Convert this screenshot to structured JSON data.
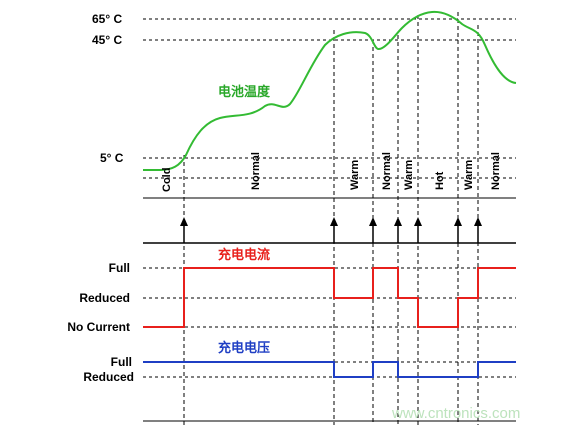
{
  "temperature_axis": {
    "t65": "65° C",
    "t45": "45° C",
    "t5": "5° C"
  },
  "temperature_curve": {
    "label": "电池温度",
    "color": "#33bb33"
  },
  "zones": {
    "cold": "Cold",
    "normal1": "Normal",
    "warm1": "Warm",
    "normal2": "Normal",
    "warm2": "Warm",
    "hot": "Hot",
    "warm3": "Warm",
    "normal3": "Normal"
  },
  "charge_current": {
    "title": "充电电流",
    "color": "#e8201c",
    "level_full": "Full",
    "level_reduced": "Reduced",
    "level_none": "No Current"
  },
  "charge_voltage": {
    "title": "充电电压",
    "color": "#1f3fc4",
    "level_full": "Full",
    "level_reduced": "Reduced"
  },
  "watermark": "www.cntronics.com"
}
